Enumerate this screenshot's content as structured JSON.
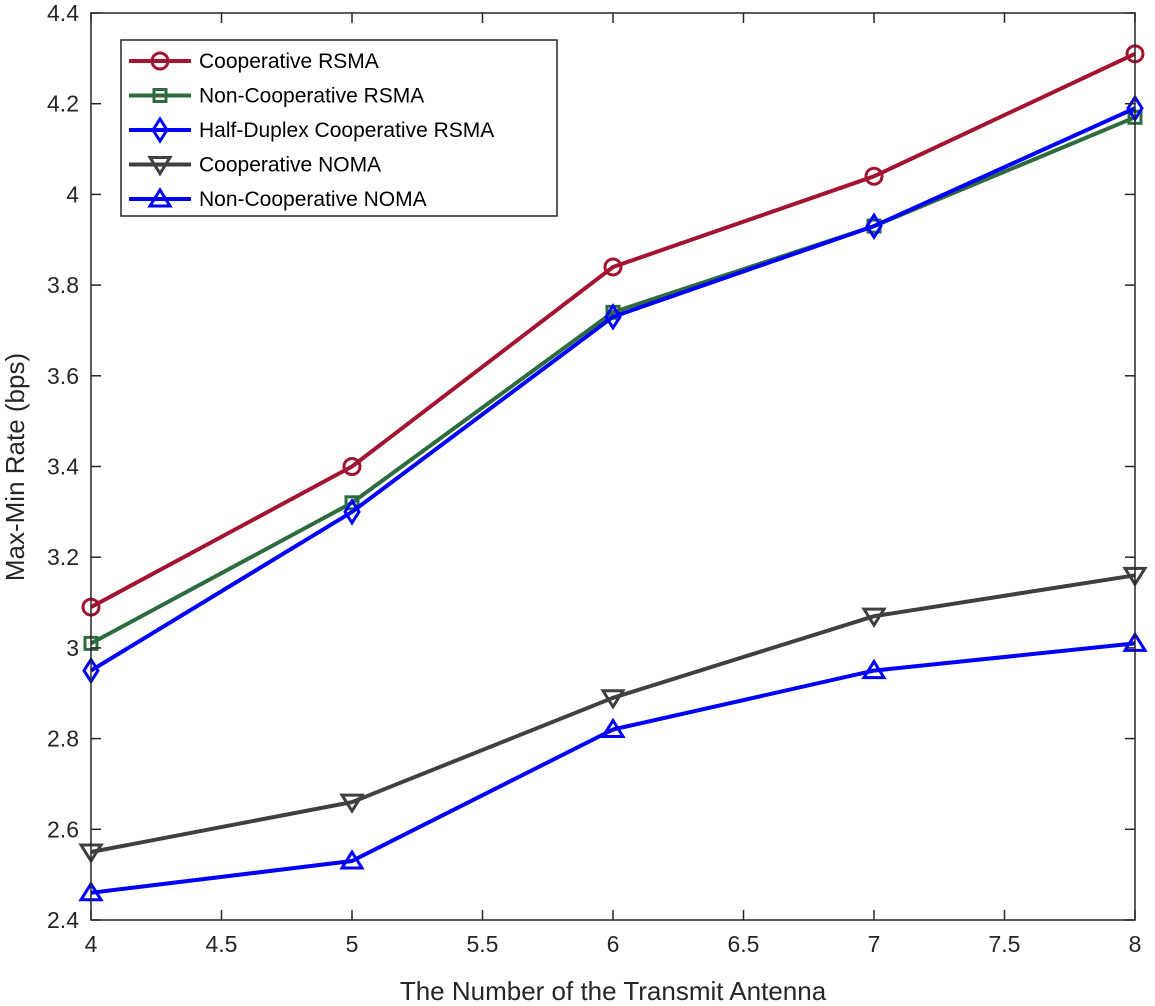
{
  "chart_data": {
    "type": "line",
    "title": "",
    "xlabel": "The Number of the Transmit Antenna",
    "ylabel": "Max-Min Rate (bps)",
    "xlim": [
      4,
      8
    ],
    "ylim": [
      2.4,
      4.4
    ],
    "xticks": [
      "4",
      "4.5",
      "5",
      "5.5",
      "6",
      "6.5",
      "7",
      "7.5",
      "8"
    ],
    "yticks": [
      "2.4",
      "2.6",
      "2.8",
      "3",
      "3.2",
      "3.4",
      "3.6",
      "3.8",
      "4",
      "4.2",
      "4.4"
    ],
    "grid": false,
    "legend_position": "top-left",
    "x": [
      4,
      5,
      6,
      7,
      8
    ],
    "series": [
      {
        "name": "Cooperative RSMA",
        "values": [
          3.09,
          3.4,
          3.84,
          4.04,
          4.31
        ],
        "color": "#a2142f",
        "marker": "circle"
      },
      {
        "name": "Non-Cooperative RSMA",
        "values": [
          3.01,
          3.32,
          3.74,
          3.93,
          4.17
        ],
        "color": "#2e6b3e",
        "marker": "square"
      },
      {
        "name": "Half-Duplex Cooperative RSMA",
        "values": [
          2.95,
          3.3,
          3.73,
          3.93,
          4.19
        ],
        "color": "#0000ff",
        "marker": "diamond"
      },
      {
        "name": "Cooperative NOMA",
        "values": [
          2.55,
          2.66,
          2.89,
          3.07,
          3.16
        ],
        "color": "#404040",
        "marker": "triangle-down"
      },
      {
        "name": "Non-Cooperative NOMA",
        "values": [
          2.46,
          2.53,
          2.82,
          2.95,
          3.01
        ],
        "color": "#0000ff",
        "marker": "triangle-up"
      }
    ]
  }
}
